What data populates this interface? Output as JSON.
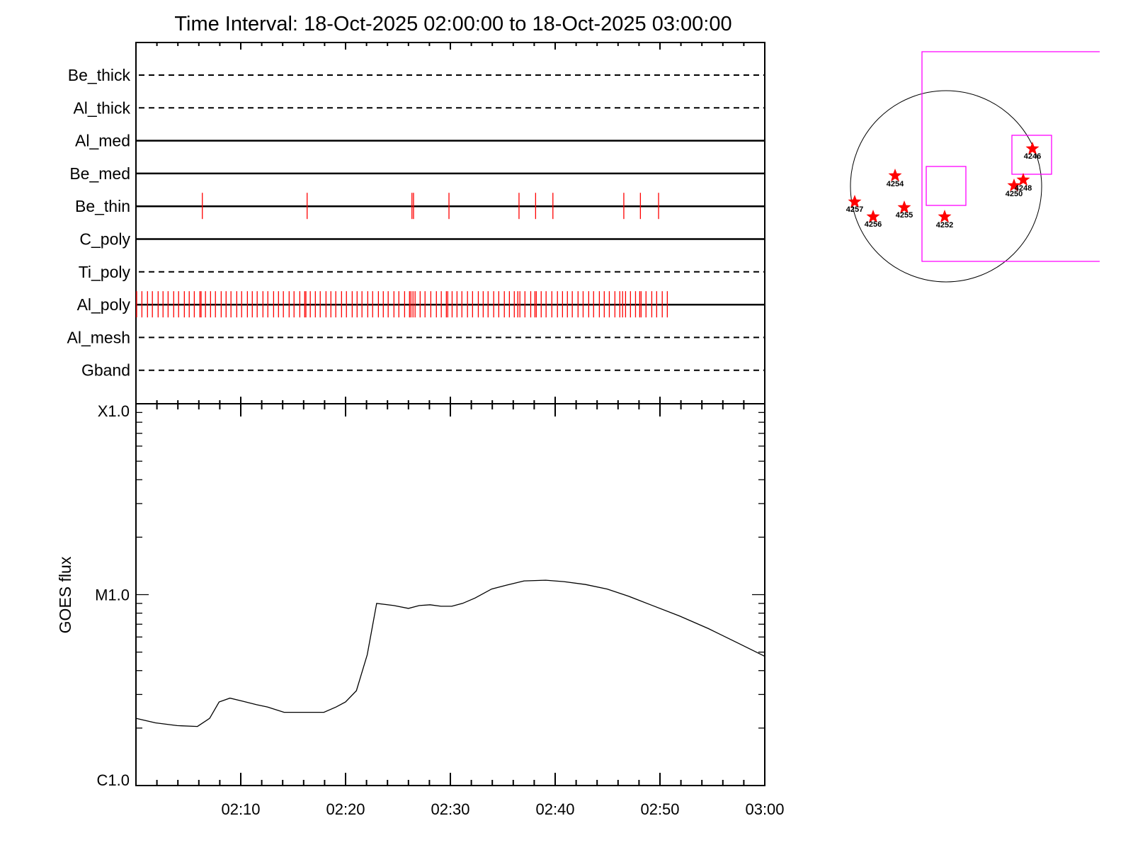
{
  "chart_data": [
    {
      "type": "timeline",
      "title": "Time Interval: 18-Oct-2025 02:00:00 to 18-Oct-2025 03:00:00",
      "xlim": [
        "02:00:00",
        "03:00:00"
      ],
      "x_tick_labels": [
        "02:10",
        "02:20",
        "02:30",
        "02:40",
        "02:50",
        "03:00"
      ],
      "color": "#ff0000",
      "rows": [
        {
          "name": "Be_thick",
          "style": "dashed",
          "times": []
        },
        {
          "name": "Al_thick",
          "style": "dashed",
          "times": []
        },
        {
          "name": "Al_med",
          "style": "solid",
          "times": []
        },
        {
          "name": "Be_med",
          "style": "solid",
          "times": []
        },
        {
          "name": "Be_thin",
          "style": "solid",
          "times": [
            "02:06:20",
            "02:16:20",
            "02:26:20",
            "02:26:29",
            "02:29:52",
            "02:36:33",
            "02:38:08",
            "02:39:47",
            "02:46:33",
            "02:48:08",
            "02:49:52"
          ]
        },
        {
          "name": "C_poly",
          "style": "solid",
          "times": []
        },
        {
          "name": "Ti_poly",
          "style": "dashed",
          "times": []
        },
        {
          "name": "Al_poly",
          "style": "solid",
          "times": [
            "02:00:04",
            "02:00:34",
            "02:01:06",
            "02:01:34",
            "02:02:07",
            "02:02:35",
            "02:03:04",
            "02:03:36",
            "02:04:04",
            "02:04:37",
            "02:05:05",
            "02:05:34",
            "02:06:06",
            "02:06:13",
            "02:06:38",
            "02:07:07",
            "02:07:35",
            "02:08:08",
            "02:08:36",
            "02:09:04",
            "02:09:37",
            "02:10:05",
            "02:10:38",
            "02:11:06",
            "02:11:34",
            "02:12:07",
            "02:12:35",
            "02:13:08",
            "02:13:36",
            "02:14:04",
            "02:14:37",
            "02:15:05",
            "02:15:38",
            "02:16:06",
            "02:16:13",
            "02:16:38",
            "02:17:07",
            "02:17:35",
            "02:18:08",
            "02:18:36",
            "02:19:04",
            "02:19:37",
            "02:20:05",
            "02:20:38",
            "02:21:06",
            "02:21:34",
            "02:22:07",
            "02:22:35",
            "02:23:08",
            "02:23:36",
            "02:24:04",
            "02:24:37",
            "02:25:05",
            "02:25:38",
            "02:26:06",
            "02:26:14",
            "02:26:26",
            "02:26:38",
            "02:27:07",
            "02:27:35",
            "02:28:08",
            "02:28:40",
            "02:29:08",
            "02:29:37",
            "02:29:45",
            "02:30:10",
            "02:30:38",
            "02:31:06",
            "02:31:38",
            "02:32:07",
            "02:32:40",
            "02:33:08",
            "02:33:36",
            "02:34:08",
            "02:34:37",
            "02:35:09",
            "02:35:38",
            "02:36:06",
            "02:36:26",
            "02:36:38",
            "02:37:07",
            "02:37:40",
            "02:38:04",
            "02:38:12",
            "02:38:40",
            "02:39:08",
            "02:39:41",
            "02:40:13",
            "02:40:42",
            "02:41:10",
            "02:41:38",
            "02:42:11",
            "02:42:40",
            "02:43:12",
            "02:43:40",
            "02:44:13",
            "02:44:41",
            "02:45:10",
            "02:45:42",
            "02:46:10",
            "02:46:26",
            "02:46:43",
            "02:47:11",
            "02:47:40",
            "02:48:04",
            "02:48:12",
            "02:48:40",
            "02:49:13",
            "02:49:41",
            "02:50:13",
            "02:50:42"
          ]
        },
        {
          "name": "Al_mesh",
          "style": "dashed",
          "times": []
        },
        {
          "name": "Gband",
          "style": "dashed",
          "times": []
        }
      ]
    },
    {
      "type": "line",
      "ylabel": "GOES flux",
      "yscale": "log",
      "ylim": [
        1e-06,
        0.0001
      ],
      "y_tick_labels": [
        {
          "label": "C1.0",
          "value": 1e-06
        },
        {
          "label": "M1.0",
          "value": 1e-05
        },
        {
          "label": "X1.0",
          "value": 0.0001
        }
      ],
      "xlim": [
        "02:00:00",
        "03:00:00"
      ],
      "x_tick_labels": [
        "02:10",
        "02:20",
        "02:30",
        "02:40",
        "02:50",
        "03:00"
      ],
      "color": "#000000",
      "x": [
        "02:00:00",
        "02:01:52",
        "02:03:56",
        "02:05:52",
        "02:07:02",
        "02:07:56",
        "02:08:58",
        "02:10:08",
        "02:11:31",
        "02:12:33",
        "02:14:08",
        "02:16:00",
        "02:17:56",
        "02:19:06",
        "02:20:00",
        "02:21:02",
        "02:22:04",
        "02:22:58",
        "02:24:37",
        "02:26:00",
        "02:27:02",
        "02:28:04",
        "02:29:06",
        "02:30:08",
        "02:31:10",
        "02:32:21",
        "02:33:56",
        "02:35:19",
        "02:37:02",
        "02:39:06",
        "02:40:50",
        "02:42:54",
        "02:44:58",
        "02:47:02",
        "02:49:06",
        "02:51:52",
        "02:54:37",
        "02:57:23",
        "03:00:00"
      ],
      "y": [
        2.25e-06,
        2.13e-06,
        2.06e-06,
        2.04e-06,
        2.25e-06,
        2.74e-06,
        2.87e-06,
        2.77e-06,
        2.65e-06,
        2.58e-06,
        2.42e-06,
        2.42e-06,
        2.42e-06,
        2.58e-06,
        2.74e-06,
        3.14e-06,
        4.84e-06,
        9e-06,
        8.77e-06,
        8.47e-06,
        8.77e-06,
        8.85e-06,
        8.69e-06,
        8.69e-06,
        9e-06,
        9.6e-06,
        1.07e-05,
        1.12e-05,
        1.18e-05,
        1.19e-05,
        1.17e-05,
        1.13e-05,
        1.07e-05,
        9.8e-06,
        8.85e-06,
        7.73e-06,
        6.64e-06,
        5.6e-06,
        4.75e-06
      ]
    }
  ],
  "sun_map": {
    "disk_color": "#000000",
    "fov_color": "#ff00ff",
    "marker_color": "#ff0000",
    "marker_icon": "star-icon",
    "regions": [
      "4246",
      "4254",
      "4257",
      "4256",
      "4255",
      "4252",
      "4250",
      "4248"
    ]
  }
}
